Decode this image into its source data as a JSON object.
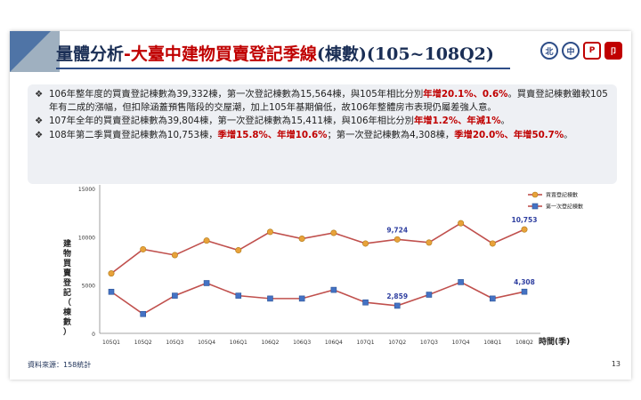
{
  "title": {
    "main": "量體分析",
    "dash": "-",
    "sub": "大臺中建物買賣登記季線",
    "paren": "(棟數)(105~108Q2)"
  },
  "logos": [
    "北",
    "中",
    "P",
    "卩"
  ],
  "bullets": [
    {
      "segments": [
        {
          "text": "106年整年度的買賣登記棟數為39,332棟，第一次登記棟數為15,564棟，與105年相比分別",
          "hl": false
        },
        {
          "text": "年增20.1%、0.6%",
          "hl": true
        },
        {
          "text": "。買賣登記棟數雖較105年有二成的漲幅，但扣除涵蓋預售階段的交屋潮，加上105年基期偏低，故106年整體房市表現仍屬差強人意。",
          "hl": false
        }
      ]
    },
    {
      "segments": [
        {
          "text": "107年全年的買賣登記棟數為39,804棟，第一次登記棟數為15,411棟，與106年相比分別",
          "hl": false
        },
        {
          "text": "年增1.2%、年減1%",
          "hl": true
        },
        {
          "text": "。",
          "hl": false
        }
      ]
    },
    {
      "segments": [
        {
          "text": "108年第二季買賣登記棟數為10,753棟，",
          "hl": false
        },
        {
          "text": "季增15.8%、年增10.6%",
          "hl": true
        },
        {
          "text": "；第一次登記棟數為4,308棟，",
          "hl": false
        },
        {
          "text": "季增20.0%、年增50.7%",
          "hl": true
        },
        {
          "text": "。",
          "hl": false
        }
      ]
    }
  ],
  "bullet_mark": "❖",
  "chart_data": {
    "type": "line",
    "categories": [
      "105Q1",
      "105Q2",
      "105Q3",
      "105Q4",
      "106Q1",
      "106Q2",
      "106Q3",
      "106Q4",
      "107Q1",
      "107Q2",
      "107Q3",
      "107Q4",
      "108Q1",
      "108Q2"
    ],
    "series": [
      {
        "name": "買賣登記棟數",
        "color": "#c0504d",
        "marker": "circle",
        "marker_color": "#e8a23a",
        "values": [
          6200,
          8700,
          8100,
          9600,
          8600,
          10500,
          9800,
          10400,
          9300,
          9724,
          9400,
          11400,
          9300,
          10753
        ]
      },
      {
        "name": "第一次登記棟數",
        "color": "#c0504d",
        "marker": "square",
        "marker_color": "#4472c4",
        "values": [
          4300,
          2000,
          3900,
          5200,
          3900,
          3600,
          3600,
          4500,
          3200,
          2859,
          4000,
          5300,
          3600,
          4308
        ]
      }
    ],
    "annotations": [
      {
        "series": 0,
        "index": 9,
        "text": "9,724"
      },
      {
        "series": 0,
        "index": 13,
        "text": "10,753"
      },
      {
        "series": 1,
        "index": 9,
        "text": "2,859"
      },
      {
        "series": 1,
        "index": 13,
        "text": "4,308"
      }
    ],
    "yticks": [
      "0",
      "5000",
      "10000",
      "15000"
    ],
    "ylim": [
      0,
      15000
    ],
    "ylabel": "建物買賣登記（棟數）",
    "xlabel": "時間(季)",
    "legend_position": "top-right",
    "grid": false
  },
  "source": "資料來源：158統計",
  "page_number": "13"
}
